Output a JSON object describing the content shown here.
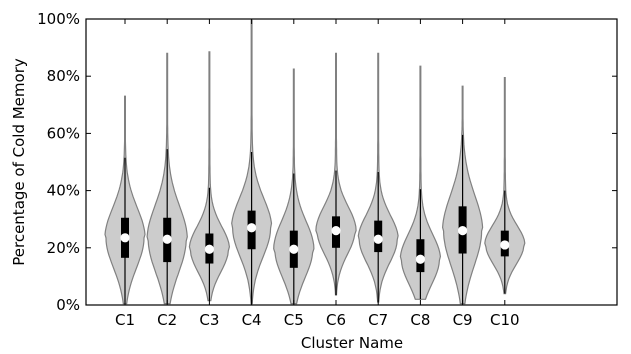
{
  "chart_data": {
    "type": "violin",
    "xlabel": "Cluster Name",
    "ylabel": "Percentage of Cold Memory",
    "ylim": [
      0,
      100
    ],
    "yticks": [
      "0%",
      "20%",
      "40%",
      "60%",
      "80%",
      "100%"
    ],
    "categories": [
      "C1",
      "C2",
      "C3",
      "C4",
      "C5",
      "C6",
      "C7",
      "C8",
      "C9",
      "C10"
    ],
    "violins": [
      {
        "name": "C1",
        "min": 0.5,
        "max": 73,
        "q1": 16.5,
        "q3": 30.5,
        "median": 23.5,
        "whisker_high": 51.5
      },
      {
        "name": "C2",
        "min": 0.5,
        "max": 88,
        "q1": 15,
        "q3": 30.5,
        "median": 23,
        "whisker_high": 54.5
      },
      {
        "name": "C3",
        "min": 1.5,
        "max": 88.5,
        "q1": 14.5,
        "q3": 25,
        "median": 19.5,
        "whisker_high": 41
      },
      {
        "name": "C4",
        "min": 0.5,
        "max": 99.5,
        "q1": 19.5,
        "q3": 33,
        "median": 27,
        "whisker_high": 53.5
      },
      {
        "name": "C5",
        "min": 0.5,
        "max": 82.5,
        "q1": 13,
        "q3": 26,
        "median": 19.5,
        "whisker_high": 46
      },
      {
        "name": "C6",
        "min": 3.5,
        "max": 88,
        "q1": 20,
        "q3": 31,
        "median": 26,
        "whisker_high": 47
      },
      {
        "name": "C7",
        "min": 1,
        "max": 88,
        "q1": 18.5,
        "q3": 29.5,
        "median": 23,
        "whisker_high": 46.5
      },
      {
        "name": "C8",
        "min": 2,
        "max": 83.5,
        "q1": 11.5,
        "q3": 23,
        "median": 16,
        "whisker_high": 40.5
      },
      {
        "name": "C9",
        "min": 0.5,
        "max": 76.5,
        "q1": 18,
        "q3": 34.5,
        "median": 26,
        "whisker_high": 59.5
      },
      {
        "name": "C10",
        "min": 4,
        "max": 79.5,
        "q1": 17,
        "q3": 26,
        "median": 21,
        "whisker_high": 40
      }
    ],
    "grid": false,
    "legend": "none",
    "colors": {
      "violin_fill": "#cccccc",
      "violin_edge": "#808080",
      "box": "#000000",
      "median": "#ffffff"
    }
  }
}
